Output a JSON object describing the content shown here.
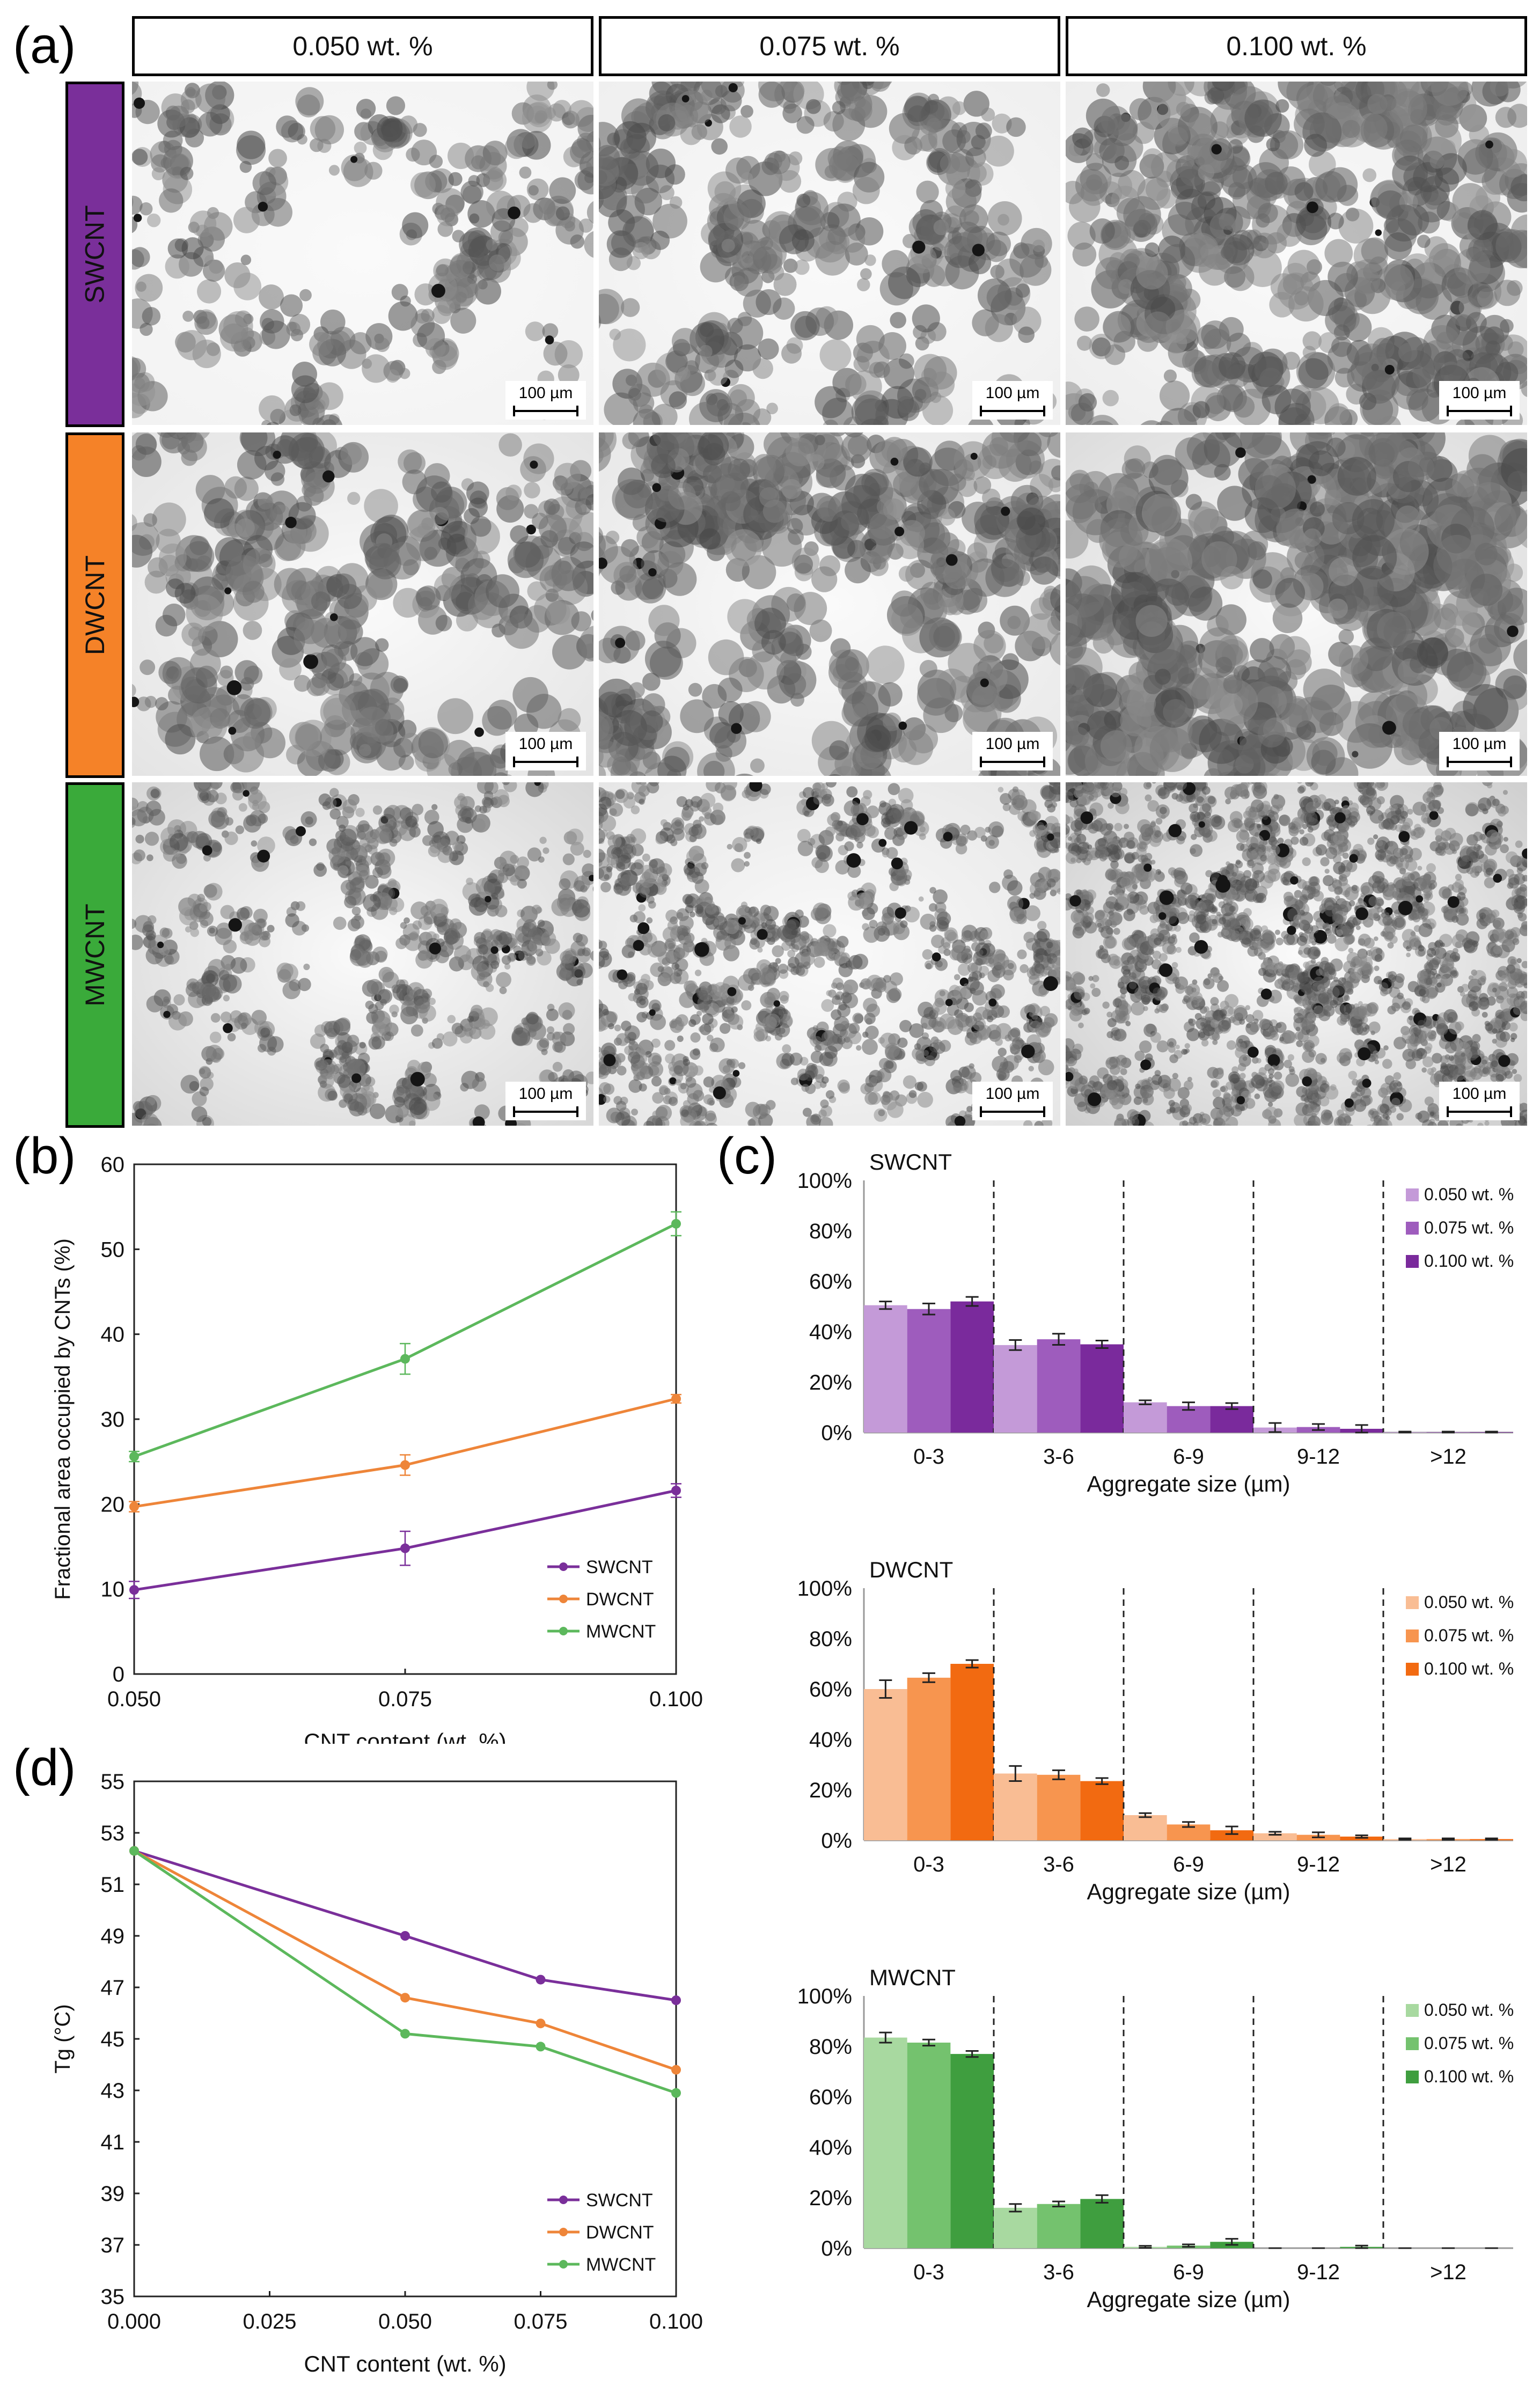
{
  "panel_labels": {
    "a": "(a)",
    "b": "(b)",
    "c": "(c)",
    "d": "(d)"
  },
  "micrographs": {
    "columns": [
      "0.050 wt. %",
      "0.075 wt. %",
      "0.100 wt. %"
    ],
    "rows": [
      {
        "label": "SWCNT",
        "color": "#7a2f9a"
      },
      {
        "label": "DWCNT",
        "color": "#f58228"
      },
      {
        "label": "MWCNT",
        "color": "#3aaa3a"
      }
    ],
    "scale_bar": "100 µm"
  },
  "chart_data": [
    {
      "id": "b",
      "type": "line",
      "xlabel": "CNT content (wt. %)",
      "ylabel": "Fractional area occupied by CNTs (%)",
      "xlim": [
        0.05,
        0.1
      ],
      "ylim": [
        0,
        60
      ],
      "xticks": [
        "0.050",
        "0.075",
        "0.100"
      ],
      "yticks": [
        "0",
        "10",
        "20",
        "30",
        "40",
        "50",
        "60"
      ],
      "x": [
        0.05,
        0.075,
        0.1
      ],
      "legend_position": "bottom-right",
      "series": [
        {
          "name": "SWCNT",
          "color": "#7a2f9a",
          "values": [
            9.9,
            14.8,
            21.6
          ],
          "errors": [
            1.0,
            2.0,
            0.8
          ]
        },
        {
          "name": "DWCNT",
          "color": "#ee8539",
          "values": [
            19.7,
            24.6,
            32.4
          ],
          "errors": [
            0.6,
            1.2,
            0.5
          ]
        },
        {
          "name": "MWCNT",
          "color": "#5cb85c",
          "values": [
            25.6,
            37.1,
            53.0
          ],
          "errors": [
            0.6,
            1.8,
            1.4
          ]
        }
      ]
    },
    {
      "id": "c-swcnt",
      "type": "bar",
      "title": "SWCNT",
      "xlabel": "Aggregate size (µm)",
      "categories": [
        "0-3",
        "3-6",
        "6-9",
        "9-12",
        ">12"
      ],
      "ylim": [
        0,
        100
      ],
      "yticks": [
        "0%",
        "20%",
        "40%",
        "60%",
        "80%",
        "100%"
      ],
      "legend_position": "top-right",
      "series": [
        {
          "name": "0.050 wt. %",
          "color": "#c49ad8",
          "values": [
            50.5,
            34.7,
            12.0,
            2.0,
            0.2
          ],
          "errors": [
            1.5,
            2.0,
            0.8,
            1.8,
            0.2
          ]
        },
        {
          "name": "0.075 wt. %",
          "color": "#9e5cbd",
          "values": [
            49.0,
            37.0,
            10.5,
            2.2,
            0.2
          ],
          "errors": [
            2.2,
            2.2,
            1.5,
            1.2,
            0.2
          ]
        },
        {
          "name": "0.100 wt. %",
          "color": "#7a2a9c",
          "values": [
            52.0,
            35.0,
            10.5,
            1.5,
            0.2
          ],
          "errors": [
            1.8,
            1.5,
            1.2,
            1.5,
            0.2
          ]
        }
      ]
    },
    {
      "id": "c-dwcnt",
      "type": "bar",
      "title": "DWCNT",
      "xlabel": "Aggregate size (µm)",
      "categories": [
        "0-3",
        "3-6",
        "6-9",
        "9-12",
        ">12"
      ],
      "ylim": [
        0,
        100
      ],
      "yticks": [
        "0%",
        "20%",
        "40%",
        "60%",
        "80%",
        "100%"
      ],
      "legend_position": "top-right",
      "series": [
        {
          "name": "0.050 wt. %",
          "color": "#f9bd94",
          "values": [
            60.0,
            26.5,
            10.0,
            2.8,
            0.5
          ],
          "errors": [
            3.5,
            3.0,
            0.8,
            0.6,
            0.3
          ]
        },
        {
          "name": "0.075 wt. %",
          "color": "#f7954f",
          "values": [
            64.5,
            26.0,
            6.3,
            2.2,
            0.5
          ],
          "errors": [
            1.8,
            1.8,
            1.0,
            1.0,
            0.3
          ]
        },
        {
          "name": "0.100 wt. %",
          "color": "#f26a11",
          "values": [
            70.0,
            23.5,
            4.0,
            1.5,
            0.5
          ],
          "errors": [
            1.5,
            1.2,
            1.5,
            0.5,
            0.3
          ]
        }
      ]
    },
    {
      "id": "c-mwcnt",
      "type": "bar",
      "title": "MWCNT",
      "xlabel": "Aggregate size (µm)",
      "categories": [
        "0-3",
        "3-6",
        "6-9",
        "9-12",
        ">12"
      ],
      "ylim": [
        0,
        100
      ],
      "yticks": [
        "0%",
        "20%",
        "40%",
        "60%",
        "80%",
        "100%"
      ],
      "legend_position": "top-right",
      "series": [
        {
          "name": "0.050 wt. %",
          "color": "#a8d9a0",
          "values": [
            83.5,
            16.0,
            0.5,
            0.0,
            0.0
          ],
          "errors": [
            2.0,
            1.5,
            0.4,
            0.0,
            0.0
          ]
        },
        {
          "name": "0.075 wt. %",
          "color": "#74c26e",
          "values": [
            81.5,
            17.5,
            1.0,
            0.0,
            0.0
          ],
          "errors": [
            1.2,
            1.0,
            0.5,
            0.0,
            0.0
          ]
        },
        {
          "name": "0.100 wt. %",
          "color": "#3f9e3f",
          "values": [
            77.0,
            19.5,
            2.5,
            0.5,
            0.0
          ],
          "errors": [
            1.2,
            1.5,
            1.2,
            0.5,
            0.0
          ]
        }
      ]
    },
    {
      "id": "d",
      "type": "line",
      "xlabel": "CNT content (wt. %)",
      "ylabel": "Tg (°C)",
      "xlim": [
        0,
        0.1
      ],
      "ylim": [
        35,
        55
      ],
      "xticks": [
        "0.000",
        "0.025",
        "0.050",
        "0.075",
        "0.100"
      ],
      "yticks": [
        "35",
        "37",
        "39",
        "41",
        "43",
        "45",
        "47",
        "49",
        "51",
        "53",
        "55"
      ],
      "x": [
        0,
        0.05,
        0.075,
        0.1
      ],
      "legend_position": "bottom-right",
      "series": [
        {
          "name": "SWCNT",
          "color": "#7a2f9a",
          "values": [
            52.3,
            49.0,
            47.3,
            46.5
          ]
        },
        {
          "name": "DWCNT",
          "color": "#ee8539",
          "values": [
            52.3,
            46.6,
            45.6,
            43.8
          ]
        },
        {
          "name": "MWCNT",
          "color": "#5cb85c",
          "values": [
            52.3,
            45.2,
            44.7,
            42.9
          ]
        }
      ]
    }
  ]
}
